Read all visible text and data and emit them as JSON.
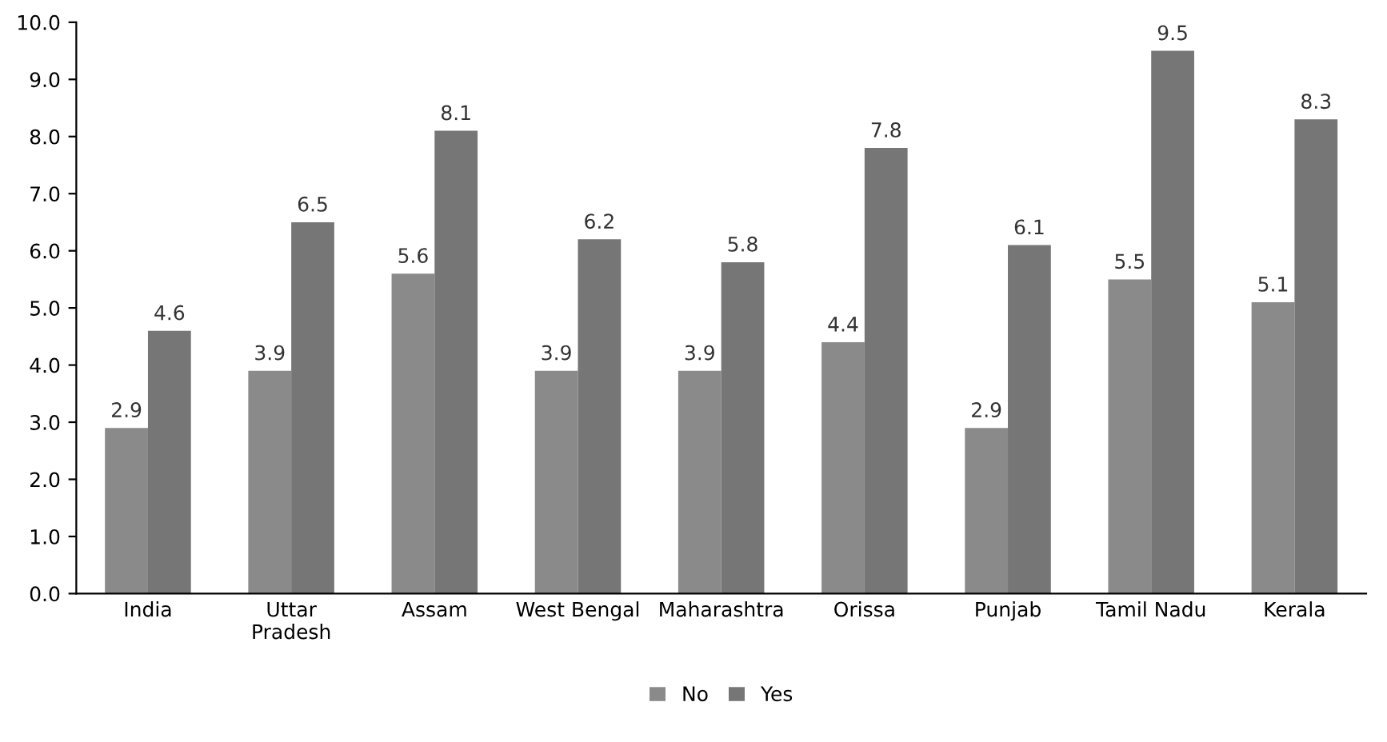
{
  "chart_data": {
    "type": "bar",
    "categories": [
      "India",
      "Uttar\nPradesh",
      "Assam",
      "West Bengal",
      "Maharashtra",
      "Orissa",
      "Punjab",
      "Tamil Nadu",
      "Kerala"
    ],
    "series": [
      {
        "name": "No",
        "color": "#8a8a8a",
        "values": [
          2.9,
          3.9,
          5.6,
          3.9,
          3.9,
          4.4,
          2.9,
          5.5,
          5.1
        ]
      },
      {
        "name": "Yes",
        "color": "#767676",
        "values": [
          4.6,
          6.5,
          8.1,
          6.2,
          5.8,
          7.8,
          6.1,
          9.5,
          8.3
        ]
      }
    ],
    "ylim": [
      0,
      10
    ],
    "yticks": [
      {
        "value": 0,
        "label": "0.0"
      },
      {
        "value": 1,
        "label": "1.0"
      },
      {
        "value": 2,
        "label": "2.0"
      },
      {
        "value": 3,
        "label": "3.0"
      },
      {
        "value": 4,
        "label": "4.0"
      },
      {
        "value": 5,
        "label": "5.0"
      },
      {
        "value": 6,
        "label": "6.0"
      },
      {
        "value": 7,
        "label": "7.0"
      },
      {
        "value": 8,
        "label": "8.0"
      },
      {
        "value": 9,
        "label": "9.0"
      },
      {
        "value": 10,
        "label": "10.0"
      }
    ],
    "data_labels": true,
    "grid": false,
    "legend": "bottom"
  }
}
